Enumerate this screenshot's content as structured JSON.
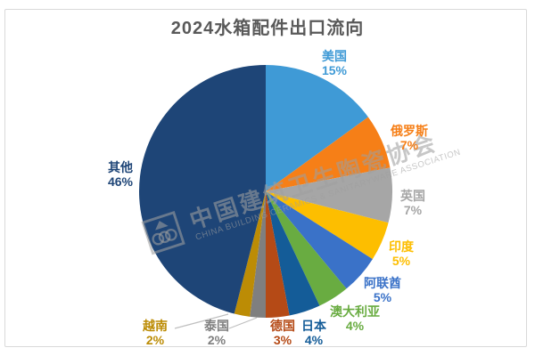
{
  "title": "2024水箱配件出口流向",
  "watermark": {
    "cn": "中国建筑卫生陶瓷协会",
    "en": "CHINA BUILDING CERAMICS & SANITARYWARE ASSOCIATION"
  },
  "chart_data": {
    "type": "pie",
    "title": "2024水箱配件出口流向",
    "unit": "%",
    "start_angle_deg": 0,
    "direction": "clockwise",
    "legend_position": "none",
    "labels_outside": true,
    "slices": [
      {
        "label": "美国",
        "value": 15,
        "pct_label": "15%",
        "color": "#3F9AD6"
      },
      {
        "label": "俄罗斯",
        "value": 7,
        "pct_label": "7%",
        "color": "#F67F17"
      },
      {
        "label": "英国",
        "value": 7,
        "pct_label": "7%",
        "color": "#A6A6A6"
      },
      {
        "label": "印度",
        "value": 5,
        "pct_label": "5%",
        "color": "#FDBE00"
      },
      {
        "label": "阿联酋",
        "value": 5,
        "pct_label": "5%",
        "color": "#3A72C8"
      },
      {
        "label": "澳大利亚",
        "value": 4,
        "pct_label": "4%",
        "color": "#69AC41"
      },
      {
        "label": "日本",
        "value": 4,
        "pct_label": "4%",
        "color": "#145C98"
      },
      {
        "label": "德国",
        "value": 3,
        "pct_label": "3%",
        "color": "#B54A16"
      },
      {
        "label": "泰国",
        "value": 2,
        "pct_label": "2%",
        "color": "#7F7F7F"
      },
      {
        "label": "越南",
        "value": 2,
        "pct_label": "2%",
        "color": "#BC8C05"
      },
      {
        "label": "其他",
        "value": 46,
        "pct_label": "46%",
        "color": "#1E4577"
      }
    ]
  }
}
